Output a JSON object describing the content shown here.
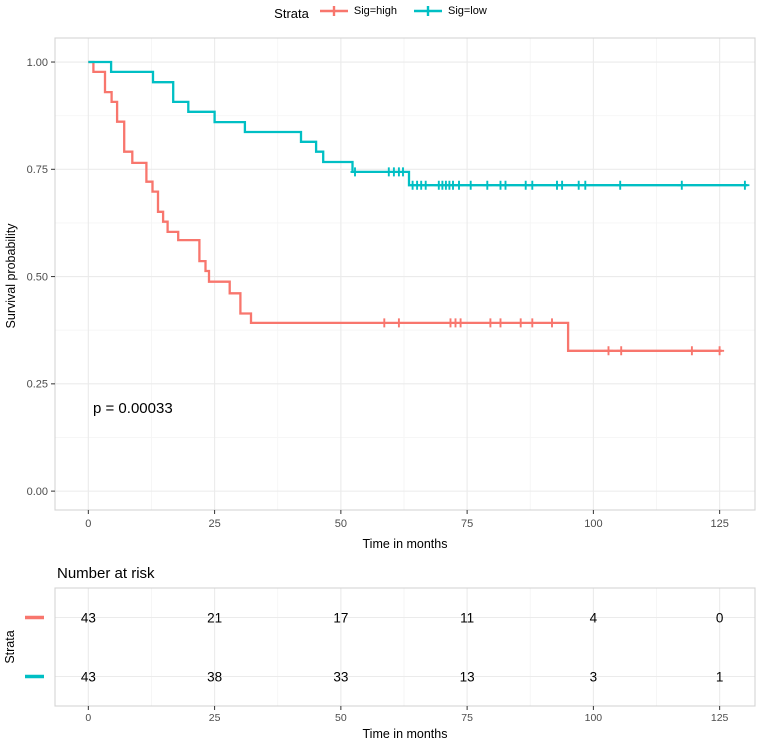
{
  "chart_data": {
    "type": "line",
    "subtype": "kaplan-meier-step",
    "title": "",
    "xlabel": "Time in months",
    "ylabel": "Survival probability",
    "xlim": [
      -6.6,
      132
    ],
    "ylim": [
      -0.044,
      1.056
    ],
    "xticks": [
      0,
      25,
      50,
      75,
      100,
      125
    ],
    "ytick_values": [
      0,
      0.25,
      0.5,
      0.75,
      1
    ],
    "ytick_labels": [
      "0.00",
      "0.25",
      "0.50",
      "0.75",
      "1.00"
    ],
    "grid": {
      "major": true,
      "minor": true
    },
    "pvalue_annotation": {
      "text": "p = 0.00033",
      "x": 1,
      "y": 0.185
    },
    "legend": {
      "title": "Strata",
      "position": "top",
      "entries": [
        {
          "label": "Sig=high",
          "color": "#F8766D"
        },
        {
          "label": "Sig=low",
          "color": "#00BFC4"
        }
      ]
    },
    "series": [
      {
        "name": "Sig=high",
        "color": "#F8766D",
        "steps": [
          [
            0,
            1.0
          ],
          [
            1,
            0.977
          ],
          [
            3.3,
            0.93
          ],
          [
            4.6,
            0.907
          ],
          [
            5.7,
            0.861
          ],
          [
            7.1,
            0.791
          ],
          [
            8.7,
            0.765
          ],
          [
            11.5,
            0.721
          ],
          [
            12.7,
            0.698
          ],
          [
            13.8,
            0.651
          ],
          [
            14.8,
            0.628
          ],
          [
            15.7,
            0.604
          ],
          [
            17.8,
            0.585
          ],
          [
            22,
            0.536
          ],
          [
            23.2,
            0.513
          ],
          [
            23.9,
            0.488
          ],
          [
            28,
            0.461
          ],
          [
            30.1,
            0.414
          ],
          [
            32.2,
            0.392
          ],
          [
            95,
            0.327
          ]
        ],
        "end_time": 125.4,
        "censor_times": [
          58.6,
          61.5,
          71.7,
          72.7,
          73.7,
          79.6,
          81.6,
          85.6,
          87.9,
          91.8,
          103,
          105.5,
          119.5,
          125
        ]
      },
      {
        "name": "Sig=low",
        "color": "#00BFC4",
        "steps": [
          [
            0,
            1.0
          ],
          [
            4.5,
            0.977
          ],
          [
            12.8,
            0.953
          ],
          [
            16.8,
            0.907
          ],
          [
            19.8,
            0.884
          ],
          [
            25,
            0.86
          ],
          [
            31,
            0.837
          ],
          [
            42.1,
            0.814
          ],
          [
            45.1,
            0.791
          ],
          [
            46.5,
            0.767
          ],
          [
            52.3,
            0.744
          ],
          [
            63.5,
            0.713
          ]
        ],
        "end_time": 130.5,
        "censor_times": [
          52.8,
          59.5,
          60.5,
          61.5,
          62.3,
          64.2,
          65.1,
          65.9,
          66.8,
          69.4,
          70.1,
          70.8,
          71.5,
          72.2,
          73.4,
          75.7,
          79,
          81.6,
          82.6,
          86.6,
          87.9,
          92.8,
          93.8,
          97.1,
          98.4,
          105.3,
          117.5,
          130
        ]
      }
    ],
    "risk_table": {
      "title": "Number at risk",
      "ylabel": "Strata",
      "xlabel": "Time in months",
      "times": [
        0,
        25,
        50,
        75,
        100,
        125
      ],
      "rows": [
        {
          "name": "Sig=high",
          "color": "#F8766D",
          "counts": [
            43,
            21,
            17,
            11,
            4,
            0
          ]
        },
        {
          "name": "Sig=low",
          "color": "#00BFC4",
          "counts": [
            43,
            38,
            33,
            13,
            3,
            1
          ]
        }
      ]
    },
    "colors": {
      "grid_major": "#EBEBEB",
      "grid_minor": "#F5F5F5",
      "panel_border": "#D4D4D4",
      "tick_mark": "#333333",
      "tick_text": "#4D4D4D",
      "text": "#000000",
      "background": "#FFFFFF"
    }
  }
}
